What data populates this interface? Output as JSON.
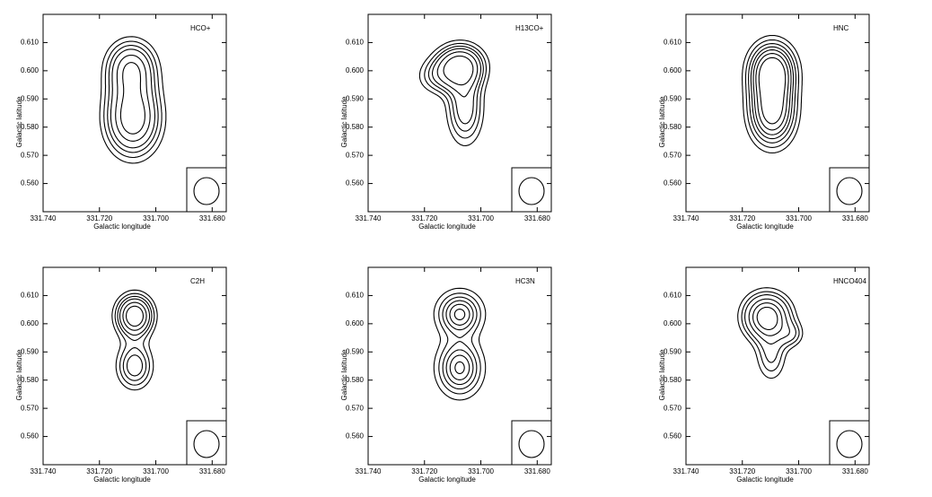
{
  "chart_data": [
    {
      "type": "contour",
      "title": "HCO+",
      "x_label": "Galactic longitude",
      "y_label": "Galactic latitude",
      "xlim": [
        331.74,
        331.675
      ],
      "ylim": [
        0.55,
        0.62
      ],
      "xticks": [
        {
          "value": 331.74,
          "label": "331.740"
        },
        {
          "value": 331.72,
          "label": "331.720"
        },
        {
          "value": 331.7,
          "label": "331.700"
        },
        {
          "value": 331.68,
          "label": "331.680"
        }
      ],
      "yticks": [
        {
          "value": 0.56,
          "label": "0.560"
        },
        {
          "value": 0.57,
          "label": "0.570"
        },
        {
          "value": 0.58,
          "label": "0.580"
        },
        {
          "value": 0.59,
          "label": "0.590"
        },
        {
          "value": 0.6,
          "label": "0.600"
        },
        {
          "value": 0.61,
          "label": "0.610"
        }
      ]
    },
    {
      "type": "contour",
      "title": "H13CO+",
      "x_label": "Galactic longitude",
      "y_label": "Galactic latitude",
      "xlim": [
        331.74,
        331.675
      ],
      "ylim": [
        0.55,
        0.62
      ],
      "xticks": [
        {
          "value": 331.74,
          "label": "331.740"
        },
        {
          "value": 331.72,
          "label": "331.720"
        },
        {
          "value": 331.7,
          "label": "331.700"
        },
        {
          "value": 331.68,
          "label": "331.680"
        }
      ],
      "yticks": [
        {
          "value": 0.56,
          "label": "0.560"
        },
        {
          "value": 0.57,
          "label": "0.570"
        },
        {
          "value": 0.58,
          "label": "0.580"
        },
        {
          "value": 0.59,
          "label": "0.590"
        },
        {
          "value": 0.6,
          "label": "0.600"
        },
        {
          "value": 0.61,
          "label": "0.610"
        }
      ]
    },
    {
      "type": "contour",
      "title": "HNC",
      "x_label": "Galactic longitude",
      "y_label": "Galactic latitude",
      "xlim": [
        331.74,
        331.675
      ],
      "ylim": [
        0.55,
        0.62
      ],
      "xticks": [
        {
          "value": 331.74,
          "label": "331.740"
        },
        {
          "value": 331.72,
          "label": "331.720"
        },
        {
          "value": 331.7,
          "label": "331.700"
        },
        {
          "value": 331.68,
          "label": "331.680"
        }
      ],
      "yticks": [
        {
          "value": 0.56,
          "label": "0.560"
        },
        {
          "value": 0.57,
          "label": "0.570"
        },
        {
          "value": 0.58,
          "label": "0.580"
        },
        {
          "value": 0.59,
          "label": "0.590"
        },
        {
          "value": 0.6,
          "label": "0.600"
        },
        {
          "value": 0.61,
          "label": "0.610"
        }
      ]
    },
    {
      "type": "contour",
      "title": "C2H",
      "x_label": "Galactic longitude",
      "y_label": "Galactic latitude",
      "xlim": [
        331.74,
        331.675
      ],
      "ylim": [
        0.55,
        0.62
      ],
      "xticks": [
        {
          "value": 331.74,
          "label": "331.740"
        },
        {
          "value": 331.72,
          "label": "331.720"
        },
        {
          "value": 331.7,
          "label": "331.700"
        },
        {
          "value": 331.68,
          "label": "331.680"
        }
      ],
      "yticks": [
        {
          "value": 0.56,
          "label": "0.560"
        },
        {
          "value": 0.57,
          "label": "0.570"
        },
        {
          "value": 0.58,
          "label": "0.580"
        },
        {
          "value": 0.59,
          "label": "0.590"
        },
        {
          "value": 0.6,
          "label": "0.600"
        },
        {
          "value": 0.61,
          "label": "0.610"
        }
      ]
    },
    {
      "type": "contour",
      "title": "HC3N",
      "x_label": "Galactic longitude",
      "y_label": "Galactic latitude",
      "xlim": [
        331.74,
        331.675
      ],
      "ylim": [
        0.55,
        0.62
      ],
      "xticks": [
        {
          "value": 331.74,
          "label": "331.740"
        },
        {
          "value": 331.72,
          "label": "331.720"
        },
        {
          "value": 331.7,
          "label": "331.700"
        },
        {
          "value": 331.68,
          "label": "331.680"
        }
      ],
      "yticks": [
        {
          "value": 0.56,
          "label": "0.560"
        },
        {
          "value": 0.57,
          "label": "0.570"
        },
        {
          "value": 0.58,
          "label": "0.580"
        },
        {
          "value": 0.59,
          "label": "0.590"
        },
        {
          "value": 0.6,
          "label": "0.600"
        },
        {
          "value": 0.61,
          "label": "0.610"
        }
      ]
    },
    {
      "type": "contour",
      "title": "HNCO404",
      "x_label": "Galactic longitude",
      "y_label": "Galactic latitude",
      "xlim": [
        331.74,
        331.675
      ],
      "ylim": [
        0.55,
        0.62
      ],
      "xticks": [
        {
          "value": 331.74,
          "label": "331.740"
        },
        {
          "value": 331.72,
          "label": "331.720"
        },
        {
          "value": 331.7,
          "label": "331.700"
        },
        {
          "value": 331.68,
          "label": "331.680"
        }
      ],
      "yticks": [
        {
          "value": 0.56,
          "label": "0.560"
        },
        {
          "value": 0.57,
          "label": "0.570"
        },
        {
          "value": 0.58,
          "label": "0.580"
        },
        {
          "value": 0.59,
          "label": "0.590"
        },
        {
          "value": 0.6,
          "label": "0.600"
        },
        {
          "value": 0.61,
          "label": "0.610"
        }
      ]
    }
  ]
}
